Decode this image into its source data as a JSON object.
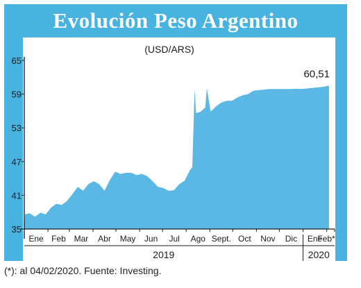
{
  "chart_data": {
    "type": "area",
    "title": "Evolución Peso Argentino",
    "subtitle": "(USD/ARS)",
    "ylim": [
      35,
      65
    ],
    "yticks": [
      35,
      41,
      47,
      53,
      59,
      65
    ],
    "month_labels": [
      "Ene",
      "Feb",
      "Mar",
      "Abr",
      "May",
      "Jun",
      "Jul",
      "Ago",
      "Sept.",
      "Oct",
      "Nov",
      "Dic",
      "Ene",
      "Feb*"
    ],
    "year_labels": [
      "2019",
      "2020"
    ],
    "last_value_label": "60,51",
    "colors": {
      "area": "#5bb8e4",
      "frame": "#49b3df",
      "axis": "#1a1a1a"
    },
    "series": [
      {
        "x": [
          "2019-01-02",
          "2019-01-08",
          "2019-01-15",
          "2019-01-22",
          "2019-01-29",
          "2019-02-05",
          "2019-02-12",
          "2019-02-19",
          "2019-02-26",
          "2019-03-05",
          "2019-03-12",
          "2019-03-19",
          "2019-03-26",
          "2019-04-02",
          "2019-04-09",
          "2019-04-16",
          "2019-04-23",
          "2019-04-30",
          "2019-05-07",
          "2019-05-14",
          "2019-05-21",
          "2019-05-28",
          "2019-06-04",
          "2019-06-11",
          "2019-06-18",
          "2019-06-25",
          "2019-07-02",
          "2019-07-09",
          "2019-07-16",
          "2019-07-23",
          "2019-07-30",
          "2019-08-06",
          "2019-08-09",
          "2019-08-12",
          "2019-08-14",
          "2019-08-20",
          "2019-08-26",
          "2019-08-28",
          "2019-09-02",
          "2019-09-09",
          "2019-09-16",
          "2019-09-23",
          "2019-09-30",
          "2019-10-07",
          "2019-10-14",
          "2019-10-21",
          "2019-10-28",
          "2019-11-04",
          "2019-11-11",
          "2019-11-18",
          "2019-11-25",
          "2019-12-02",
          "2019-12-09",
          "2019-12-16",
          "2019-12-23",
          "2019-12-30",
          "2020-01-06",
          "2020-01-13",
          "2020-01-20",
          "2020-01-27",
          "2020-02-04"
        ],
        "values": [
          37.6,
          37.8,
          37.2,
          37.9,
          37.6,
          38.8,
          39.5,
          39.3,
          40.0,
          41.2,
          42.5,
          41.8,
          43.0,
          43.5,
          43.0,
          41.8,
          43.7,
          45.2,
          44.8,
          45.0,
          45.0,
          44.6,
          44.8,
          44.4,
          43.5,
          42.5,
          42.3,
          41.8,
          41.9,
          43.0,
          43.6,
          45.5,
          46.0,
          59.8,
          55.6,
          55.9,
          56.6,
          60.1,
          55.9,
          56.8,
          57.5,
          57.8,
          57.8,
          58.4,
          58.8,
          59.0,
          59.6,
          59.7,
          59.8,
          59.9,
          59.9,
          59.9,
          59.9,
          59.9,
          59.95,
          59.9,
          60.0,
          60.1,
          60.2,
          60.3,
          60.51
        ]
      }
    ]
  },
  "footnote": "(*): al 04/02/2020. Fuente: Investing."
}
